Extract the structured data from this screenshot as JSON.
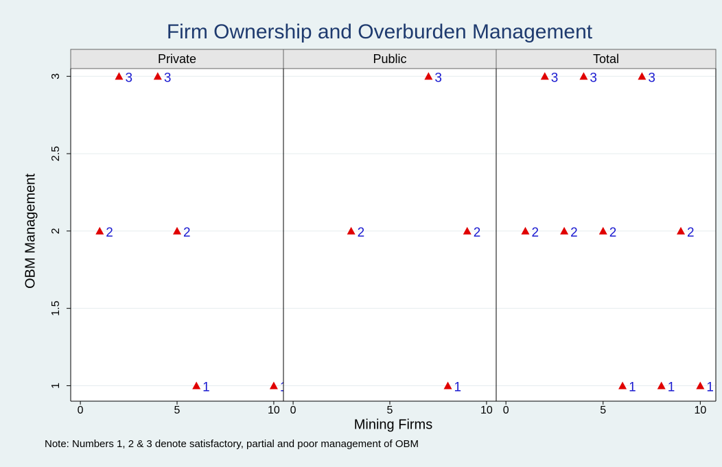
{
  "title": "Firm Ownership and Overburden Management",
  "xlabel": "Mining Firms",
  "ylabel": "OBM Management",
  "note": "Note: Numbers 1, 2 & 3 denote satisfactory, partial and poor management of OBM",
  "ylim": [
    0.9,
    3.05
  ],
  "yticks": [
    1,
    1.5,
    2,
    2.5,
    3
  ],
  "grid": true,
  "marker_color": "#e00000",
  "label_color": "#1a1ad0",
  "chart_data": [
    {
      "type": "scatter",
      "title": "Private",
      "x": [
        2,
        4,
        1,
        5,
        6,
        10
      ],
      "values": [
        3,
        3,
        2,
        2,
        1,
        1
      ],
      "xlim": [
        -0.5,
        10.5
      ],
      "xticks": [
        0,
        5,
        10
      ]
    },
    {
      "type": "scatter",
      "title": "Public",
      "x": [
        7,
        3,
        9,
        8
      ],
      "values": [
        3,
        2,
        2,
        1
      ],
      "xlim": [
        -0.5,
        10.5
      ],
      "xticks": [
        0,
        5,
        10
      ]
    },
    {
      "type": "scatter",
      "title": "Total",
      "x": [
        2,
        4,
        7,
        1,
        3,
        5,
        9,
        6,
        8,
        10
      ],
      "values": [
        3,
        3,
        3,
        2,
        2,
        2,
        2,
        1,
        1,
        1
      ],
      "xlim": [
        -0.5,
        10.8
      ],
      "xticks": [
        0,
        5,
        10
      ]
    }
  ]
}
